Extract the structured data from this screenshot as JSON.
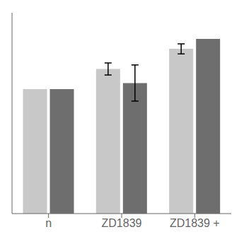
{
  "chart_data": {
    "type": "bar",
    "categories": [
      "n",
      "ZD1839",
      "ZD1839 +"
    ],
    "series": [
      {
        "color": "#c8c8c8",
        "values": [
          62,
          72,
          82
        ],
        "errors": [
          0,
          3,
          2.5
        ]
      },
      {
        "color": "#6e6e6e",
        "values": [
          62,
          65,
          87
        ],
        "errors": [
          0,
          9,
          0
        ]
      }
    ],
    "ylim": [
      0,
      100
    ],
    "grid": false,
    "tick_labels": "x"
  }
}
